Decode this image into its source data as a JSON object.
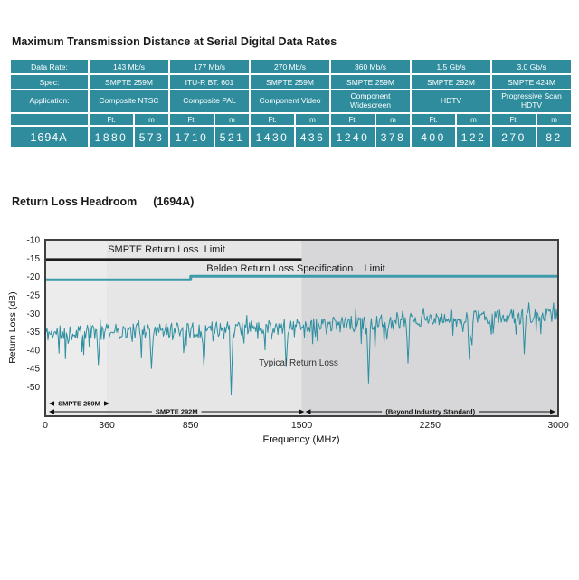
{
  "colors": {
    "table_teal": "#2e8c9d",
    "smpte_line": "#1c1c1c",
    "belden_line": "#3d9aab",
    "trace": "#2e8fa0"
  },
  "section1": {
    "title": "Maximum Transmission Distance at Serial Digital Data Rates"
  },
  "table": {
    "row_labels": {
      "data_rate": "Data Rate:",
      "spec": "Spec:",
      "application": "Application:"
    },
    "data_rates": [
      "143 Mb/s",
      "177 Mb/s",
      "270 Mb/s",
      "360 Mb/s",
      "1.5 Gb/s",
      "3.0 Gb/s"
    ],
    "specs": [
      "SMPTE 259M",
      "ITU-R BT. 601",
      "SMPTE 259M",
      "SMPTE 259M",
      "SMPTE 292M",
      "SMPTE 424M"
    ],
    "applications": [
      "Composite NTSC",
      "Composite PAL",
      "Component Video",
      "Component Widescreen",
      "HDTV",
      "Progressive Scan HDTV"
    ],
    "units": [
      "Ft.",
      "m"
    ],
    "product": "1694A",
    "values": [
      "1880",
      "573",
      "1710",
      "521",
      "1430",
      "436",
      "1240",
      "378",
      "400",
      "122",
      "270",
      "82"
    ]
  },
  "section2": {
    "title": "Return Loss Headroom",
    "product": "(1694A)"
  },
  "chart_data": {
    "type": "line",
    "title": "Return Loss Headroom (1694A)",
    "xlabel": "Frequency (MHz)",
    "ylabel": "Return Loss (dB)",
    "xlim": [
      0,
      3000
    ],
    "ylim": [
      -58,
      -10
    ],
    "x_ticks": [
      0,
      360,
      850,
      1500,
      2250,
      3000
    ],
    "y_ticks": [
      -10,
      -15,
      -20,
      -25,
      -30,
      -35,
      -40,
      -45,
      -50
    ],
    "grid": false,
    "bands": [
      {
        "x0": 0,
        "x1": 360,
        "color": "#ececec"
      },
      {
        "x0": 360,
        "x1": 1500,
        "color": "#e6e6e7"
      },
      {
        "x0": 1500,
        "x1": 3000,
        "color": "#d7d7d9"
      }
    ],
    "series": [
      {
        "name": "SMPTE Return Loss Limit",
        "kind": "limit",
        "color": "#1c1c1c",
        "width": 3,
        "points": [
          [
            0,
            -15.4
          ],
          [
            1500,
            -15.4
          ]
        ]
      },
      {
        "name": "Belden Return Loss Specification Limit",
        "kind": "limit",
        "color": "#3d9aab",
        "width": 3,
        "points": [
          [
            0,
            -20.9
          ],
          [
            850,
            -20.9
          ],
          [
            850,
            -19.9
          ],
          [
            3000,
            -19.9
          ]
        ]
      },
      {
        "name": "Typical Return Loss",
        "kind": "measured",
        "color": "#2e8fa0",
        "width": 1,
        "generator": {
          "seed": 11,
          "points": 560,
          "noise": 2.1,
          "base": [
            [
              0,
              -35.5
            ],
            [
              360,
              -35.0
            ],
            [
              850,
              -34.5
            ],
            [
              1500,
              -33.5
            ],
            [
              2250,
              -31.8
            ],
            [
              3000,
              -30.5
            ]
          ],
          "dips": [
            [
              310,
              -44
            ],
            [
              620,
              -45
            ],
            [
              926,
              -44
            ],
            [
              1085,
              -52
            ],
            [
              1410,
              -44.5
            ],
            [
              1890,
              -49
            ],
            [
              2120,
              -43.5
            ],
            [
              2480,
              -42.5
            ],
            [
              2800,
              -41
            ]
          ]
        }
      }
    ],
    "labels": {
      "smpte_limit": "SMPTE Return Loss  Limit",
      "belden_limit": "Belden Return Loss Specification    Limit",
      "typical": "Typical Return Loss"
    },
    "range_arrows": [
      {
        "label": "SMPTE 259M",
        "from": 0,
        "to": 360,
        "row": 0
      },
      {
        "label": "SMPTE 292M",
        "from": 0,
        "to": 1500,
        "row": 1
      },
      {
        "label": "(Beyond Industry Standard)",
        "from": 1500,
        "to": 3000,
        "row": 1
      }
    ]
  }
}
